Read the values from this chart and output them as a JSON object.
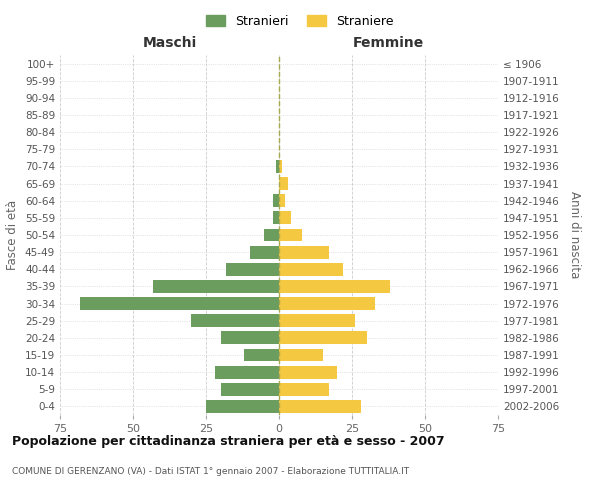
{
  "age_groups": [
    "100+",
    "95-99",
    "90-94",
    "85-89",
    "80-84",
    "75-79",
    "70-74",
    "65-69",
    "60-64",
    "55-59",
    "50-54",
    "45-49",
    "40-44",
    "35-39",
    "30-34",
    "25-29",
    "20-24",
    "15-19",
    "10-14",
    "5-9",
    "0-4"
  ],
  "birth_years": [
    "≤ 1906",
    "1907-1911",
    "1912-1916",
    "1917-1921",
    "1922-1926",
    "1927-1931",
    "1932-1936",
    "1937-1941",
    "1942-1946",
    "1947-1951",
    "1952-1956",
    "1957-1961",
    "1962-1966",
    "1967-1971",
    "1972-1976",
    "1977-1981",
    "1982-1986",
    "1987-1991",
    "1992-1996",
    "1997-2001",
    "2002-2006"
  ],
  "males": [
    0,
    0,
    0,
    0,
    0,
    0,
    1,
    0,
    2,
    2,
    5,
    10,
    18,
    43,
    68,
    30,
    20,
    12,
    22,
    20,
    25
  ],
  "females": [
    0,
    0,
    0,
    0,
    0,
    0,
    1,
    3,
    2,
    4,
    8,
    17,
    22,
    38,
    33,
    26,
    30,
    15,
    20,
    17,
    28
  ],
  "male_color": "#6a9d5e",
  "female_color": "#f5c842",
  "background_color": "#ffffff",
  "grid_color": "#cccccc",
  "title": "Popolazione per cittadinanza straniera per età e sesso - 2007",
  "subtitle": "COMUNE DI GERENZANO (VA) - Dati ISTAT 1° gennaio 2007 - Elaborazione TUTTITALIA.IT",
  "xlabel_left": "Maschi",
  "xlabel_right": "Femmine",
  "ylabel_left": "Fasce di età",
  "ylabel_right": "Anni di nascita",
  "legend_males": "Stranieri",
  "legend_females": "Straniere",
  "xlim": 75,
  "dashed_line_color": "#a8a850"
}
